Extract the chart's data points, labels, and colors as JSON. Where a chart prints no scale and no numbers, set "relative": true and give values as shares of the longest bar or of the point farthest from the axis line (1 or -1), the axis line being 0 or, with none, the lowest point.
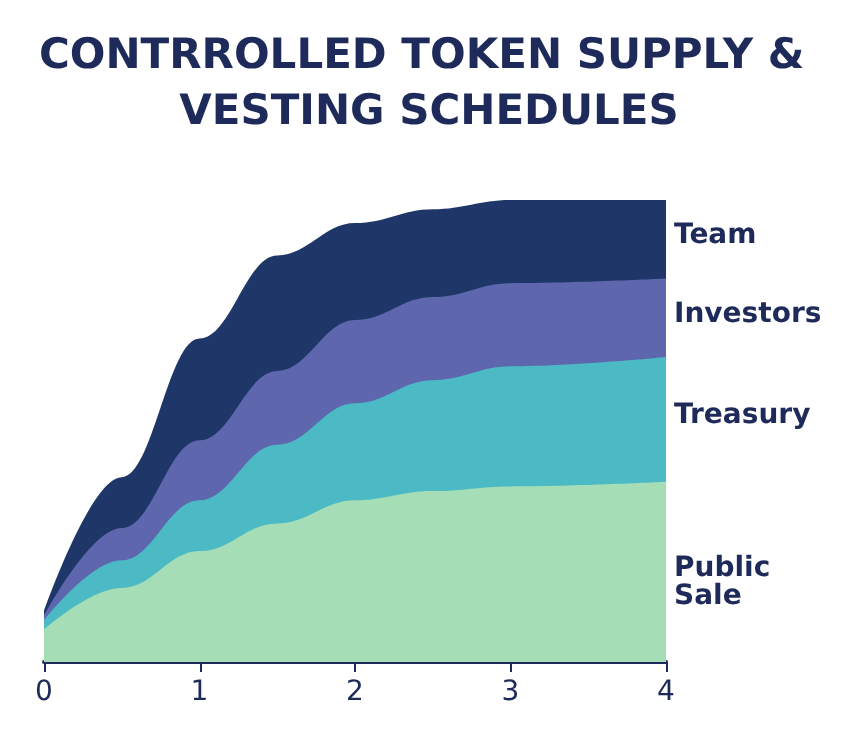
{
  "chart_data": {
    "type": "area",
    "title": "CONTRROLLED TOKEN SUPPLY & VESTING SCHEDULES",
    "relative": true,
    "stacked": true,
    "legend": false,
    "grid": false,
    "x": [
      0,
      0.5,
      1,
      1.5,
      2,
      2.5,
      3,
      4
    ],
    "xlim": [
      0,
      4
    ],
    "xticks": [
      0,
      1,
      2,
      3,
      4
    ],
    "series": [
      {
        "name": "Public Sale",
        "color": "#a5ddb6",
        "values": [
          0.07,
          0.16,
          0.24,
          0.3,
          0.35,
          0.37,
          0.38,
          0.39
        ]
      },
      {
        "name": "Treasury",
        "color": "#4bbac4",
        "values": [
          0.02,
          0.06,
          0.11,
          0.17,
          0.21,
          0.24,
          0.26,
          0.27
        ]
      },
      {
        "name": "Investors",
        "color": "#5e67ad",
        "values": [
          0.01,
          0.07,
          0.13,
          0.16,
          0.18,
          0.18,
          0.18,
          0.17
        ]
      },
      {
        "name": "Team",
        "color": "#1e3768",
        "values": [
          0.01,
          0.11,
          0.22,
          0.25,
          0.21,
          0.19,
          0.18,
          0.17
        ]
      }
    ]
  }
}
